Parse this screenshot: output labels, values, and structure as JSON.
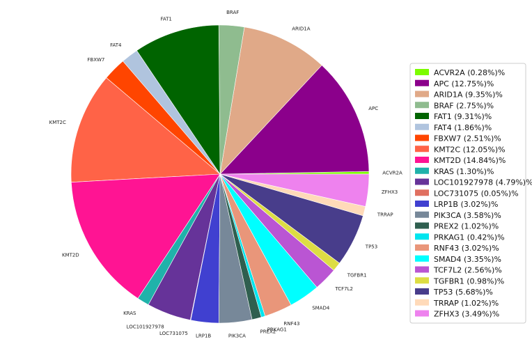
{
  "chart_data": {
    "type": "pie",
    "title": "",
    "legend_position": "right",
    "slices": [
      {
        "label": "ACVR2A",
        "value": 0.28,
        "color": "#7cfc00",
        "legend": "ACVR2A (0.28%)%"
      },
      {
        "label": "APC",
        "value": 12.75,
        "color": "#8b008b",
        "legend": "APC (12.75%)%"
      },
      {
        "label": "ARID1A",
        "value": 9.35,
        "color": "#e0a988",
        "legend": "ARID1A (9.35%)%"
      },
      {
        "label": "BRAF",
        "value": 2.75,
        "color": "#8fbc8f",
        "legend": "BRAF (2.75%)%"
      },
      {
        "label": "FAT1",
        "value": 9.31,
        "color": "#006400",
        "legend": "FAT1 (9.31%)%"
      },
      {
        "label": "FAT4",
        "value": 1.86,
        "color": "#b0c4de",
        "legend": "FAT4 (1.86%)%"
      },
      {
        "label": "FBXW7",
        "value": 2.51,
        "color": "#ff4500",
        "legend": "FBXW7 (2.51%)%"
      },
      {
        "label": "KMT2C",
        "value": 12.05,
        "color": "#ff6347",
        "legend": "KMT2C (12.05%)%"
      },
      {
        "label": "KMT2D",
        "value": 14.84,
        "color": "#ff1493",
        "legend": "KMT2D (14.84%)%"
      },
      {
        "label": "KRAS",
        "value": 1.3,
        "color": "#20b2aa",
        "legend": "KRAS (1.30%)%"
      },
      {
        "label": "LOC101927978",
        "value": 4.79,
        "color": "#663399",
        "legend": "LOC101927978 (4.79%)%"
      },
      {
        "label": "LOC731075",
        "value": 0.05,
        "color": "#e07060",
        "legend": "LOC731075 (0.05%)%"
      },
      {
        "label": "LRP1B",
        "value": 3.02,
        "color": "#4040d0",
        "legend": "LRP1B (3.02%)%"
      },
      {
        "label": "PIK3CA",
        "value": 3.58,
        "color": "#778899",
        "legend": "PIK3CA (3.58%)%"
      },
      {
        "label": "PREX2",
        "value": 1.02,
        "color": "#2f5f4f",
        "legend": "PREX2 (1.02%)%"
      },
      {
        "label": "PRKAG1",
        "value": 0.42,
        "color": "#00e5ee",
        "legend": "PRKAG1 (0.42%)%"
      },
      {
        "label": "RNF43",
        "value": 3.02,
        "color": "#e9967a",
        "legend": "RNF43 (3.02%)%"
      },
      {
        "label": "SMAD4",
        "value": 3.35,
        "color": "#00ffff",
        "legend": "SMAD4 (3.35%)%"
      },
      {
        "label": "TCF7L2",
        "value": 2.56,
        "color": "#ba55d3",
        "legend": "TCF7L2 (2.56%)%"
      },
      {
        "label": "TGFBR1",
        "value": 0.98,
        "color": "#dddd44",
        "legend": "TGFBR1 (0.98%)%"
      },
      {
        "label": "TP53",
        "value": 5.68,
        "color": "#483d8b",
        "legend": "TP53 (5.68%)%"
      },
      {
        "label": "TRRAP",
        "value": 1.02,
        "color": "#ffdab9",
        "legend": "TRRAP (1.02%)%"
      },
      {
        "label": "ZFHX3",
        "value": 3.49,
        "color": "#ee82ee",
        "legend": "ZFHX3 (3.49%)%"
      }
    ]
  }
}
